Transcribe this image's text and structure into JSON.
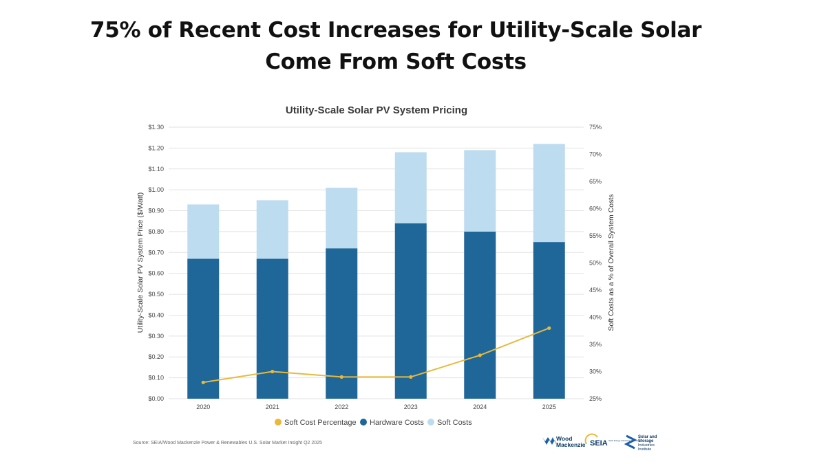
{
  "headline": {
    "line1": "75% of Recent Cost Increases for Utility-Scale Solar",
    "line2": "Come From Soft Costs"
  },
  "chart_data": {
    "type": "bar",
    "stacked": true,
    "title": "Utility-Scale Solar PV System Pricing",
    "categories": [
      "2020",
      "2021",
      "2022",
      "2023",
      "2024",
      "2025"
    ],
    "series": [
      {
        "name": "Hardware Costs",
        "type": "bar",
        "axis": "left",
        "color": "#1f6699",
        "values": [
          0.67,
          0.67,
          0.72,
          0.84,
          0.8,
          0.75
        ]
      },
      {
        "name": "Soft Costs",
        "type": "bar",
        "axis": "left",
        "color": "#bddcf0",
        "values": [
          0.26,
          0.28,
          0.29,
          0.34,
          0.39,
          0.47
        ]
      },
      {
        "name": "Soft Cost Percentage",
        "type": "line",
        "axis": "right",
        "color": "#e8b93c",
        "values": [
          28,
          30,
          29,
          29,
          33,
          38
        ]
      }
    ],
    "ylabel": "Utility-Scale Solar PV System Price ($/Watt)",
    "ylim": [
      0,
      1.3
    ],
    "yticks": [
      "$0.00",
      "$0.10",
      "$0.20",
      "$0.30",
      "$0.40",
      "$0.50",
      "$0.60",
      "$0.70",
      "$0.80",
      "$0.90",
      "$1.00",
      "$1.10",
      "$1.20",
      "$1.30"
    ],
    "y2label": "Soft Costs as a % of Overall System Costs",
    "y2lim": [
      25,
      75
    ],
    "y2ticks": [
      "25%",
      "30%",
      "35%",
      "40%",
      "45%",
      "50%",
      "55%",
      "60%",
      "65%",
      "70%",
      "75%"
    ],
    "legend": [
      "Soft Cost Percentage",
      "Hardware Costs",
      "Soft Costs"
    ],
    "legend_position": "bottom",
    "grid": true
  },
  "source": "Source: SEIA/Wood Mackenzie Power & Renewables U.S. Solar Market Insight Q2 2025",
  "logos": {
    "wood": {
      "line1": "Wood",
      "line2": "Mackenzie",
      "icon": "wood-mackenzie-logo"
    },
    "seia": {
      "text": "SEIA",
      "tagline": "Solar Energy Industries Association",
      "icon": "seia-logo"
    },
    "ssii": {
      "line1": "Solar and",
      "line2": "Storage",
      "line3": "Industries",
      "line4": "Institute",
      "icon": "ssii-logo"
    }
  }
}
